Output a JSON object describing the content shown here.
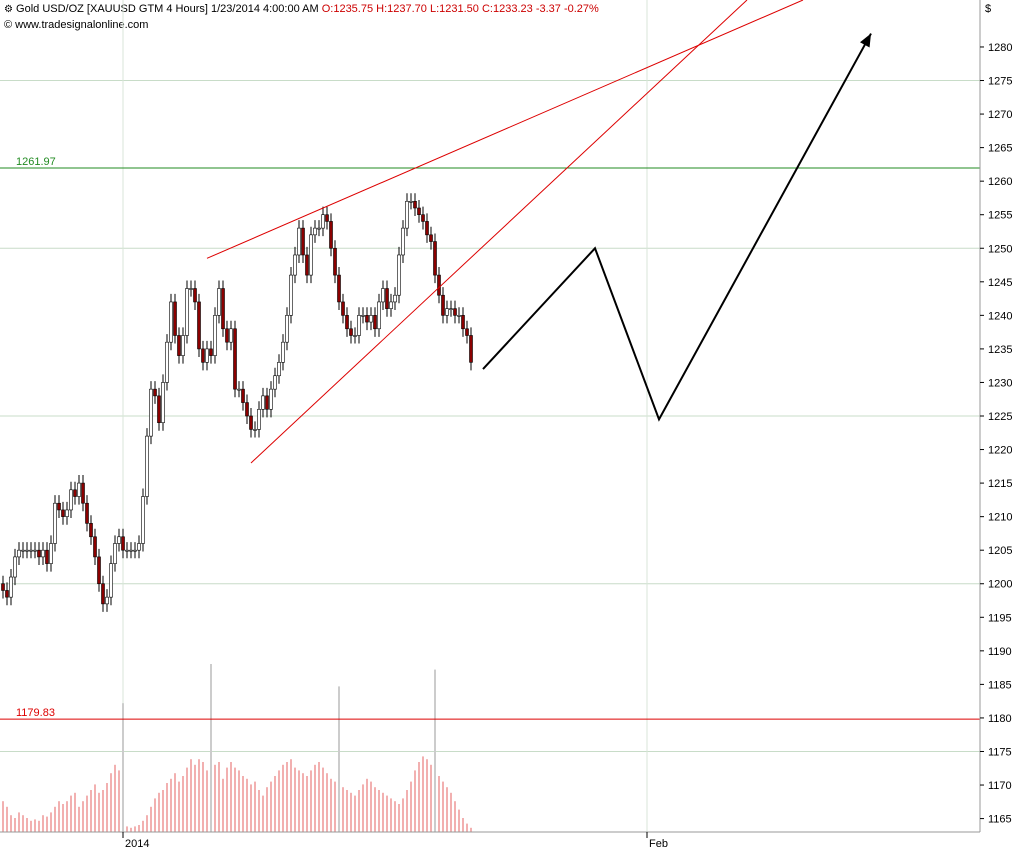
{
  "header": {
    "symbol": "Gold USD/OZ [XAUUSD GTM  4 Hours] 1/23/2014 4:00:00 AM",
    "open": "O:1235.75",
    "high": "H:1237.70",
    "low": "L:1231.50",
    "close": "C:1233.23",
    "change": "-3.37",
    "change_pct": "-0.27%",
    "site": "www.tradesignalonline.com",
    "currency": "$"
  },
  "colors": {
    "up_candle": "#ffffff",
    "down_candle": "#8b0000",
    "wedge_lines": "#dd0000",
    "resistance": "#228b22",
    "support": "#dd0000",
    "forecast": "#000000",
    "volume": "#f2b0b0",
    "volume_marker": "#cccccc"
  },
  "chart_data": {
    "type": "candlestick",
    "timeframe": "4 Hours",
    "ylim": [
      1163,
      1287
    ],
    "y_ticks": [
      1165,
      1170,
      1175,
      1180,
      1185,
      1190,
      1195,
      1200,
      1205,
      1210,
      1215,
      1220,
      1225,
      1230,
      1235,
      1240,
      1245,
      1250,
      1255,
      1260,
      1265,
      1270,
      1275,
      1280
    ],
    "x_labels": [
      {
        "label": "2014",
        "bar": 30
      },
      {
        "label": "Feb",
        "bar": 161
      }
    ],
    "gridlines": [
      1175,
      1200,
      1225,
      1250,
      1275
    ],
    "levels": [
      {
        "label": "1261.97",
        "value": 1261.97,
        "color": "#228b22"
      },
      {
        "label": "1179.83",
        "value": 1179.83,
        "color": "#dd0000"
      }
    ],
    "closes": [
      1199,
      1198,
      1201,
      1204,
      1205,
      1205,
      1205,
      1205,
      1205,
      1204,
      1205,
      1203,
      1206,
      1212,
      1211,
      1210,
      1211,
      1214,
      1213,
      1215,
      1212,
      1209,
      1207,
      1204,
      1200,
      1197,
      1198,
      1203,
      1206,
      1207,
      1205,
      1205,
      1205,
      1205,
      1206,
      1213,
      1222,
      1229,
      1228,
      1224,
      1230,
      1236,
      1242,
      1237,
      1234,
      1237,
      1244,
      1244,
      1242,
      1235,
      1233,
      1235,
      1234,
      1240,
      1244,
      1238,
      1236,
      1238,
      1229,
      1229,
      1227,
      1225,
      1223,
      1223,
      1226,
      1228,
      1226,
      1229,
      1231,
      1233,
      1236,
      1240,
      1246,
      1249,
      1253,
      1249,
      1246,
      1252,
      1253,
      1253,
      1255,
      1254,
      1250,
      1246,
      1242,
      1240,
      1238,
      1237,
      1237,
      1240,
      1240,
      1239,
      1240,
      1238,
      1242,
      1244,
      1241,
      1242,
      1243,
      1249,
      1253,
      1257,
      1257,
      1256,
      1255,
      1254,
      1252,
      1251,
      1246,
      1243,
      1240,
      1241,
      1241,
      1240,
      1240,
      1238,
      1237,
      1233
    ],
    "volume_scale_note": "",
    "volumes": [
      22,
      18,
      12,
      10,
      14,
      12,
      10,
      8,
      9,
      8,
      12,
      11,
      14,
      18,
      22,
      20,
      22,
      26,
      28,
      18,
      22,
      26,
      30,
      34,
      28,
      30,
      35,
      42,
      48,
      44,
      6,
      4,
      3,
      4,
      5,
      8,
      12,
      18,
      24,
      28,
      30,
      35,
      38,
      42,
      36,
      40,
      46,
      52,
      48,
      52,
      50,
      44,
      42,
      48,
      50,
      38,
      46,
      50,
      46,
      44,
      40,
      38,
      34,
      36,
      30,
      26,
      32,
      36,
      40,
      44,
      48,
      50,
      52,
      46,
      44,
      42,
      40,
      44,
      48,
      50,
      46,
      42,
      38,
      36,
      34,
      32,
      30,
      28,
      26,
      30,
      34,
      38,
      36,
      32,
      30,
      28,
      26,
      24,
      22,
      20,
      24,
      30,
      36,
      44,
      50,
      54,
      52,
      48,
      44,
      40,
      36,
      32,
      28,
      22,
      16,
      10,
      6,
      3
    ],
    "volume_spikes": [
      {
        "bar": 30,
        "height": 46
      },
      {
        "bar": 52,
        "height": 60
      },
      {
        "bar": 84,
        "height": 52
      },
      {
        "bar": 108,
        "height": 58
      }
    ],
    "wedge_lines": [
      {
        "x1": 51,
        "y1": 1248.5,
        "x2": 200,
        "y2": 1287
      },
      {
        "x1": 62,
        "y1": 1218,
        "x2": 186,
        "y2": 1287
      }
    ],
    "forecast_path": [
      {
        "bar": 120,
        "value": 1232
      },
      {
        "bar": 148,
        "value": 1250
      },
      {
        "bar": 164,
        "value": 1224.5
      },
      {
        "bar": 217,
        "value": 1282
      }
    ],
    "last_bar": 117
  }
}
